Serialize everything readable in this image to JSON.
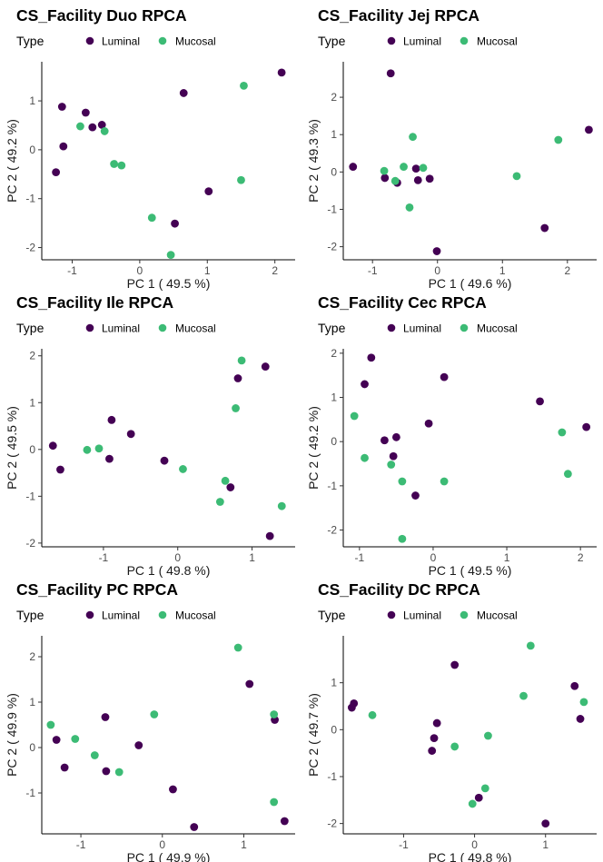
{
  "legend": {
    "title": "Type",
    "items": [
      {
        "label": "Luminal",
        "color": "#440154"
      },
      {
        "label": "Mucosal",
        "color": "#3CBB75"
      }
    ]
  },
  "chart_data": [
    {
      "type": "scatter",
      "title": "CS_Facility Duo RPCA",
      "xlabel": "PC 1 ( 49.5 %)",
      "ylabel": "PC 2 ( 49.2 %)",
      "xlim": [
        -1.45,
        2.3
      ],
      "ylim": [
        -2.25,
        1.8
      ],
      "xticks": [
        -1,
        0,
        1,
        2
      ],
      "yticks": [
        -2,
        -1,
        0,
        1
      ],
      "series": [
        {
          "name": "Luminal",
          "points": [
            [
              -1.24,
              -0.46
            ],
            [
              -1.15,
              0.88
            ],
            [
              -1.13,
              0.07
            ],
            [
              -0.8,
              0.76
            ],
            [
              -0.7,
              0.46
            ],
            [
              -0.56,
              0.51
            ],
            [
              0.65,
              1.16
            ],
            [
              1.02,
              -0.85
            ],
            [
              2.1,
              1.58
            ],
            [
              0.52,
              -1.51
            ]
          ]
        },
        {
          "name": "Mucosal",
          "points": [
            [
              -0.88,
              0.48
            ],
            [
              -0.52,
              0.38
            ],
            [
              -0.38,
              -0.29
            ],
            [
              -0.27,
              -0.32
            ],
            [
              0.18,
              -1.39
            ],
            [
              0.46,
              -2.15
            ],
            [
              1.5,
              -0.62
            ],
            [
              1.54,
              1.31
            ]
          ]
        }
      ]
    },
    {
      "type": "scatter",
      "title": "CS_Facility Jej RPCA",
      "xlabel": "PC 1 ( 49.6 %)",
      "ylabel": "PC 2 ( 49.3 %)",
      "xlim": [
        -1.45,
        2.45
      ],
      "ylim": [
        -2.35,
        2.95
      ],
      "xticks": [
        -1,
        0,
        1,
        2
      ],
      "yticks": [
        -2,
        -1,
        0,
        1,
        2
      ],
      "series": [
        {
          "name": "Luminal",
          "points": [
            [
              -1.3,
              0.14
            ],
            [
              -0.81,
              -0.16
            ],
            [
              -0.72,
              2.64
            ],
            [
              -0.62,
              -0.29
            ],
            [
              -0.33,
              0.09
            ],
            [
              -0.3,
              -0.22
            ],
            [
              -0.12,
              -0.18
            ],
            [
              -0.01,
              -2.12
            ],
            [
              1.65,
              -1.5
            ],
            [
              2.33,
              1.13
            ]
          ]
        },
        {
          "name": "Mucosal",
          "points": [
            [
              -0.82,
              0.03
            ],
            [
              -0.65,
              -0.24
            ],
            [
              -0.52,
              0.14
            ],
            [
              -0.43,
              -0.95
            ],
            [
              -0.38,
              0.94
            ],
            [
              -0.22,
              0.11
            ],
            [
              1.22,
              -0.11
            ],
            [
              1.86,
              0.86
            ]
          ]
        }
      ]
    },
    {
      "type": "scatter",
      "title": "CS_Facility Ile RPCA",
      "xlabel": "PC 1 ( 49.8 %)",
      "ylabel": "PC 2 ( 49.5 %)",
      "xlim": [
        -1.83,
        1.58
      ],
      "ylim": [
        -2.08,
        2.15
      ],
      "xticks": [
        -1,
        0,
        1
      ],
      "yticks": [
        -2,
        -1,
        0,
        1,
        2
      ],
      "series": [
        {
          "name": "Luminal",
          "points": [
            [
              -1.68,
              0.08
            ],
            [
              -1.58,
              -0.43
            ],
            [
              -0.92,
              -0.2
            ],
            [
              -0.89,
              0.63
            ],
            [
              -0.63,
              0.33
            ],
            [
              -0.18,
              -0.24
            ],
            [
              0.71,
              -0.81
            ],
            [
              0.81,
              1.52
            ],
            [
              1.18,
              1.77
            ],
            [
              1.24,
              -1.85
            ]
          ]
        },
        {
          "name": "Mucosal",
          "points": [
            [
              -1.22,
              -0.01
            ],
            [
              -1.06,
              0.02
            ],
            [
              0.07,
              -0.42
            ],
            [
              0.57,
              -1.12
            ],
            [
              0.64,
              -0.67
            ],
            [
              0.78,
              0.88
            ],
            [
              0.86,
              1.9
            ],
            [
              1.4,
              -1.21
            ]
          ]
        }
      ]
    },
    {
      "type": "scatter",
      "title": "CS_Facility Cec RPCA",
      "xlabel": "PC 1 ( 49.5 %)",
      "ylabel": "PC 2 ( 49.2 %)",
      "xlim": [
        -1.22,
        2.22
      ],
      "ylim": [
        -2.38,
        2.1
      ],
      "xticks": [
        -1,
        0,
        1,
        2
      ],
      "yticks": [
        -2,
        -1,
        0,
        1,
        2
      ],
      "series": [
        {
          "name": "Luminal",
          "points": [
            [
              -0.93,
              1.3
            ],
            [
              -0.84,
              1.9
            ],
            [
              -0.66,
              0.03
            ],
            [
              -0.54,
              -0.33
            ],
            [
              -0.5,
              0.1
            ],
            [
              -0.24,
              -1.22
            ],
            [
              -0.06,
              0.41
            ],
            [
              0.15,
              1.46
            ],
            [
              1.45,
              0.91
            ],
            [
              2.08,
              0.33
            ]
          ]
        },
        {
          "name": "Mucosal",
          "points": [
            [
              -1.07,
              0.58
            ],
            [
              -0.93,
              -0.37
            ],
            [
              -0.57,
              -0.52
            ],
            [
              -0.42,
              -0.9
            ],
            [
              -0.42,
              -2.2
            ],
            [
              0.15,
              -0.9
            ],
            [
              1.75,
              0.21
            ],
            [
              1.83,
              -0.73
            ]
          ]
        }
      ]
    },
    {
      "type": "scatter",
      "title": "CS_Facility PC RPCA",
      "xlabel": "PC 1 ( 49.9 %)",
      "ylabel": "PC 2 ( 49.9 %)",
      "xlim": [
        -1.48,
        1.63
      ],
      "ylim": [
        -1.9,
        2.46
      ],
      "xticks": [
        -1,
        0,
        1
      ],
      "yticks": [
        -1,
        0,
        1,
        2
      ],
      "series": [
        {
          "name": "Luminal",
          "points": [
            [
              -1.3,
              0.17
            ],
            [
              -1.2,
              -0.44
            ],
            [
              -0.7,
              0.67
            ],
            [
              -0.69,
              -0.52
            ],
            [
              -0.29,
              0.05
            ],
            [
              0.13,
              -0.92
            ],
            [
              0.39,
              -1.75
            ],
            [
              1.07,
              1.4
            ],
            [
              1.38,
              0.61
            ],
            [
              1.5,
              -1.62
            ]
          ]
        },
        {
          "name": "Mucosal",
          "points": [
            [
              -1.37,
              0.5
            ],
            [
              -1.07,
              0.19
            ],
            [
              -0.83,
              -0.17
            ],
            [
              -0.53,
              -0.54
            ],
            [
              -0.1,
              0.73
            ],
            [
              0.93,
              2.2
            ],
            [
              1.37,
              0.73
            ],
            [
              1.37,
              -1.2
            ]
          ]
        }
      ]
    },
    {
      "type": "scatter",
      "title": "CS_Facility DC RPCA",
      "xlabel": "PC 1 ( 49.8 %)",
      "ylabel": "PC 2 ( 49.7 %)",
      "xlim": [
        -1.85,
        1.72
      ],
      "ylim": [
        -2.22,
        2.0
      ],
      "xticks": [
        -1,
        0,
        1
      ],
      "yticks": [
        -2,
        -1,
        0,
        1
      ],
      "series": [
        {
          "name": "Luminal",
          "points": [
            [
              -1.73,
              0.47
            ],
            [
              -1.7,
              0.56
            ],
            [
              -0.6,
              -0.45
            ],
            [
              -0.57,
              -0.18
            ],
            [
              -0.53,
              0.14
            ],
            [
              -0.28,
              1.38
            ],
            [
              0.06,
              -1.45
            ],
            [
              1.0,
              -2.0
            ],
            [
              1.41,
              0.93
            ],
            [
              1.49,
              0.23
            ]
          ]
        },
        {
          "name": "Mucosal",
          "points": [
            [
              -1.44,
              0.31
            ],
            [
              -0.28,
              -0.36
            ],
            [
              -0.03,
              -1.58
            ],
            [
              0.15,
              -1.25
            ],
            [
              0.19,
              -0.13
            ],
            [
              0.69,
              0.72
            ],
            [
              0.79,
              1.79
            ],
            [
              1.54,
              0.59
            ]
          ]
        }
      ]
    }
  ]
}
